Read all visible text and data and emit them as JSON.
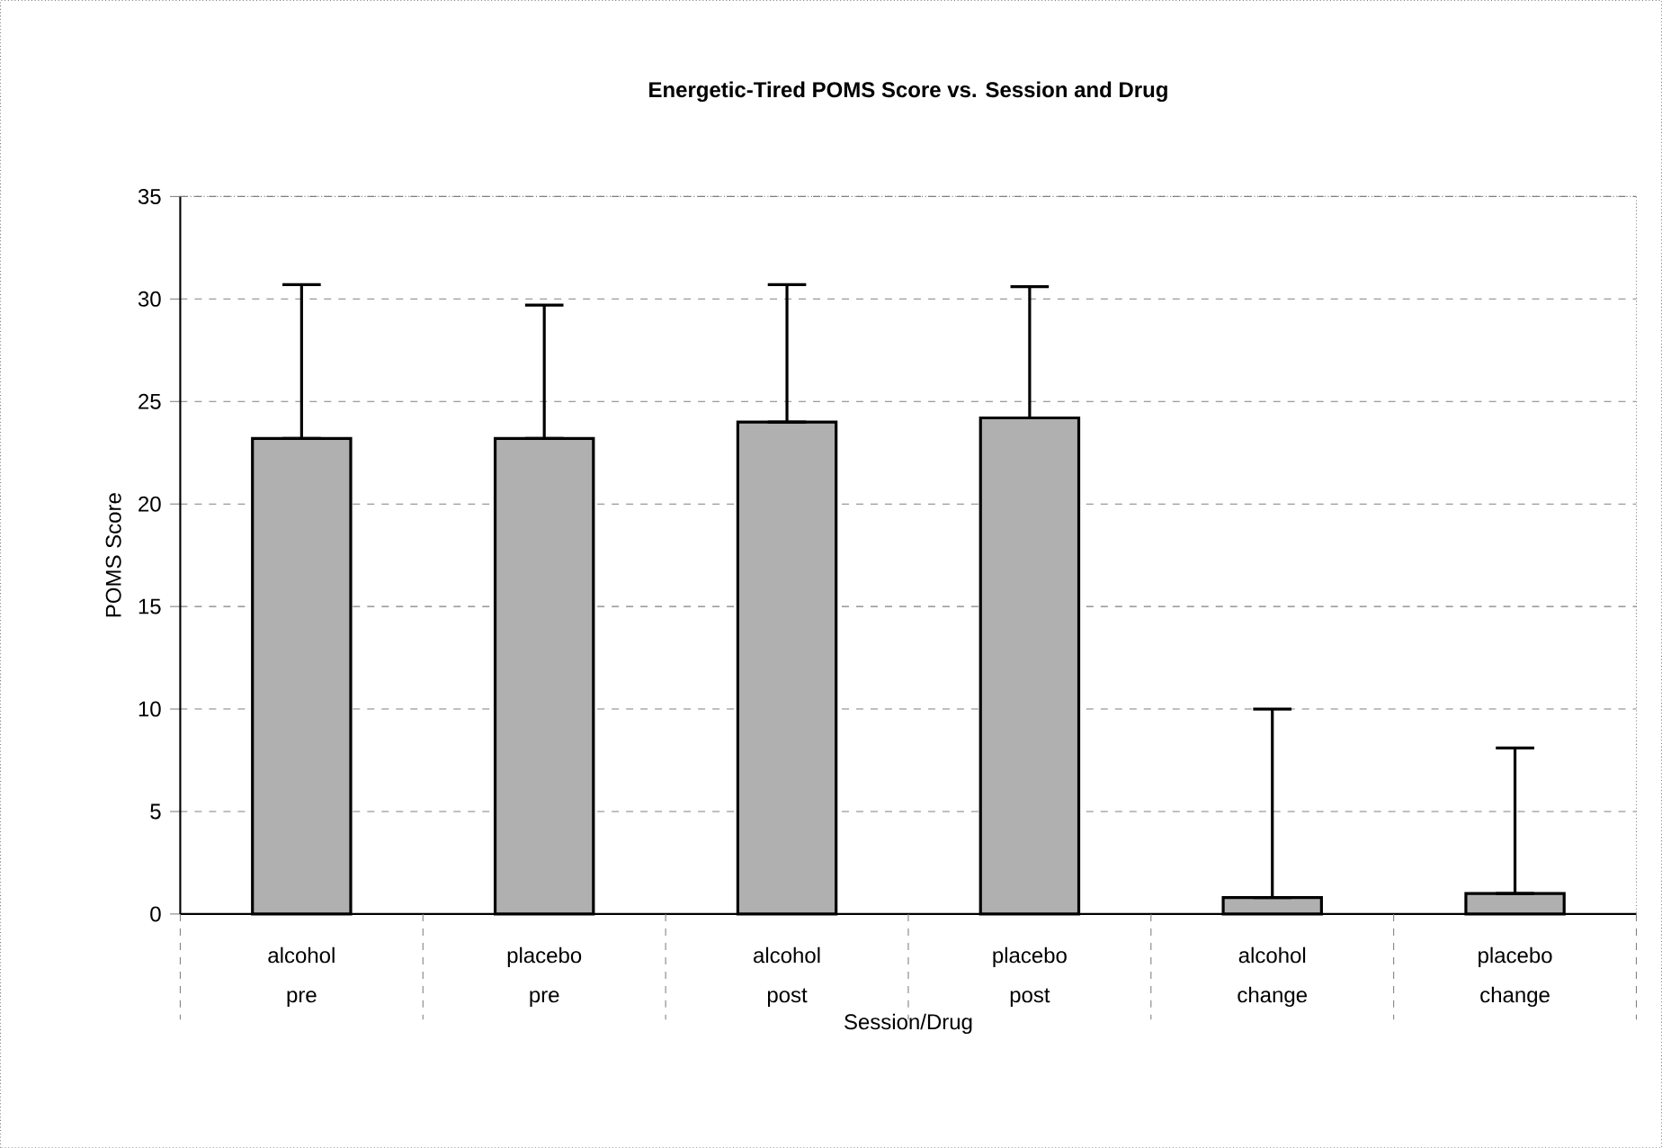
{
  "chart_data": {
    "type": "bar",
    "title": "Energetic-Tired POMS Score vs. Session and Drug",
    "xlabel": "Session/Drug",
    "ylabel": "POMS Score",
    "categories": [
      "alcohol pre",
      "placebo pre",
      "alcohol post",
      "placebo post",
      "alcohol change",
      "placebo change"
    ],
    "values": [
      23.2,
      23.2,
      24.0,
      24.2,
      0.8,
      1.0
    ],
    "errors": [
      [
        23.2,
        30.7
      ],
      [
        23.2,
        29.7
      ],
      [
        24.0,
        30.7
      ],
      [
        24.2,
        30.6
      ],
      [
        0.8,
        10.0
      ],
      [
        1.0,
        8.1
      ]
    ],
    "color": "#b0b0b0",
    "ylim": [
      0,
      35
    ],
    "yticks": [
      0,
      5,
      10,
      15,
      20,
      25,
      30,
      35
    ],
    "grid": "y"
  }
}
